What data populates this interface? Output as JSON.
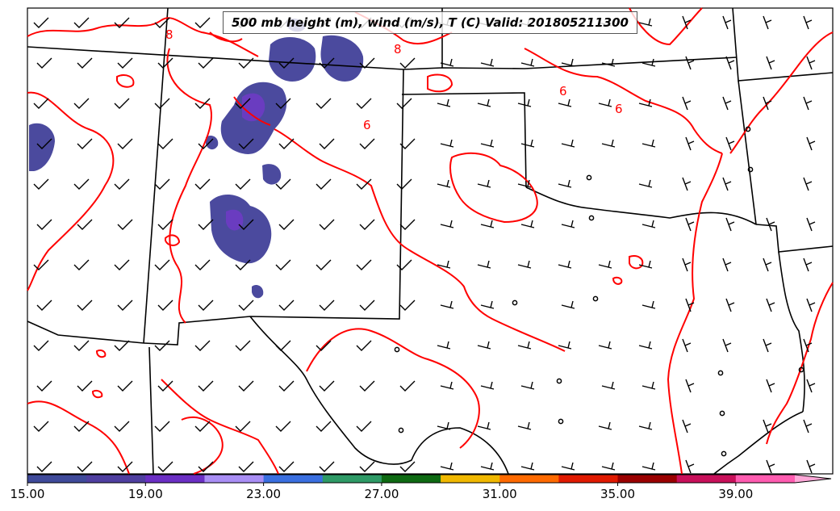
{
  "map": {
    "title": "500 mb height (m), wind (m/s), T (C) Valid: 201805211300",
    "contour_labels": [
      "8",
      "8",
      "6",
      "6",
      "6"
    ],
    "contour_color": "#ff0000",
    "barb_color": "#000000",
    "border_color": "#000000"
  },
  "colorbar": {
    "tick_labels": [
      "15.00",
      "19.00",
      "23.00",
      "27.00",
      "31.00",
      "35.00",
      "39.00"
    ],
    "colors": [
      "#3f4a9a",
      "#4f3fa0",
      "#6b2fc4",
      "#a98ef5",
      "#3a6fe0",
      "#2e9a66",
      "#0e6a12",
      "#f0b800",
      "#ff6a00",
      "#e01a00",
      "#9a0000",
      "#c8105a",
      "#ff5cb0",
      "#ffa8d8"
    ]
  }
}
